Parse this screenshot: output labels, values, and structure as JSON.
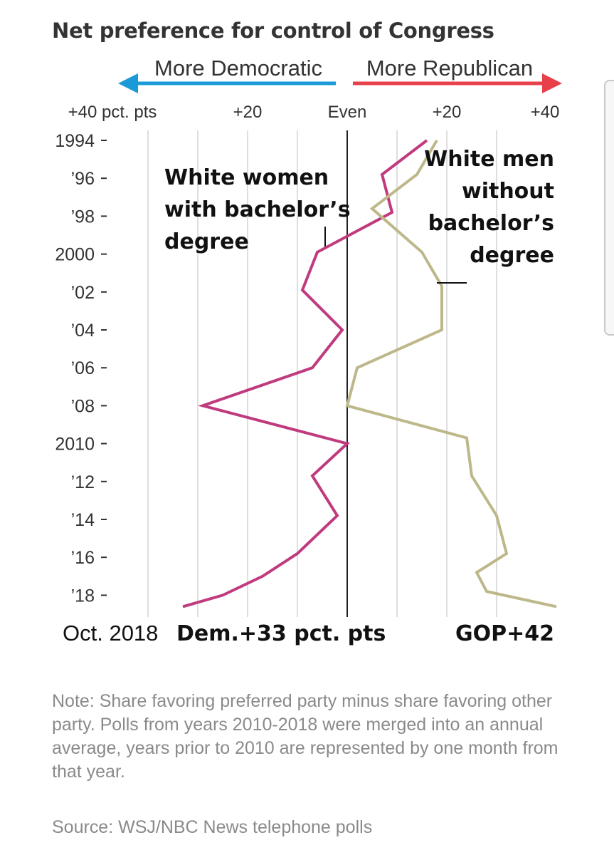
{
  "title": "Net preference for control of Congress",
  "direction": {
    "left": "More Democratic",
    "right": "More Republican",
    "left_color": "#1a9ad6",
    "right_color": "#e8404a"
  },
  "chart_data": {
    "type": "line",
    "xlim": [
      -40,
      42
    ],
    "x_ticks": [
      {
        "value": -40,
        "label": "+40 pct. pts"
      },
      {
        "value": -20,
        "label": "+20"
      },
      {
        "value": 0,
        "label": "Even"
      },
      {
        "value": 20,
        "label": "+20"
      },
      {
        "value": 40,
        "label": "+40"
      }
    ],
    "gridlines": [
      -40,
      -30,
      -20,
      -10,
      10,
      20,
      30
    ],
    "zero_line": 0,
    "y_ticks": [
      {
        "value": 1994,
        "label": "1994"
      },
      {
        "value": 1996,
        "label": "’96"
      },
      {
        "value": 1998,
        "label": "’98"
      },
      {
        "value": 2000,
        "label": "2000"
      },
      {
        "value": 2002,
        "label": "’02"
      },
      {
        "value": 2004,
        "label": "’04"
      },
      {
        "value": 2006,
        "label": "’06"
      },
      {
        "value": 2008,
        "label": "’08"
      },
      {
        "value": 2010,
        "label": "2010"
      },
      {
        "value": 2012,
        "label": "’12"
      },
      {
        "value": 2014,
        "label": "’14"
      },
      {
        "value": 2016,
        "label": "’16"
      },
      {
        "value": 2018,
        "label": "’18"
      }
    ],
    "ylim": [
      1994,
      2018.6
    ],
    "series": [
      {
        "name": "White women with bachelor’s degree",
        "label_lines": [
          "White women",
          "with bachelor’s",
          "degree"
        ],
        "color": "#c03a7e",
        "points": [
          [
            16,
            1994
          ],
          [
            7,
            1995.8
          ],
          [
            9,
            1997.8
          ],
          [
            -6,
            1999.9
          ],
          [
            -9,
            2001.9
          ],
          [
            -1,
            2004
          ],
          [
            -7,
            2006
          ],
          [
            -29,
            2008
          ],
          [
            0,
            2010
          ],
          [
            -7,
            2011.7
          ],
          [
            -2,
            2013.8
          ],
          [
            -10,
            2015.8
          ],
          [
            -17,
            2017
          ],
          [
            -25,
            2018
          ],
          [
            -33,
            2018.6
          ]
        ]
      },
      {
        "name": "White men without bachelor’s degree",
        "label_lines": [
          "White men",
          "without",
          "bachelor’s",
          "degree"
        ],
        "color": "#bdb88a",
        "points": [
          [
            18,
            1994
          ],
          [
            14,
            1995.8
          ],
          [
            5,
            1997.6
          ],
          [
            15,
            1999.9
          ],
          [
            19,
            2001.7
          ],
          [
            19,
            2004
          ],
          [
            2,
            2006
          ],
          [
            0,
            2008
          ],
          [
            24,
            2009.7
          ],
          [
            25,
            2011.7
          ],
          [
            30,
            2013.8
          ],
          [
            32,
            2015.8
          ],
          [
            26,
            2016.8
          ],
          [
            28,
            2017.8
          ],
          [
            42,
            2018.6
          ]
        ]
      }
    ],
    "endpoint_labels": {
      "date": "Oct. 2018",
      "dem": "Dem.+33 pct. pts",
      "gop": "GOP+42"
    }
  },
  "note": "Note: Share favoring preferred party minus share favoring other party. Polls from years 2010-2018 were merged into an annual average, years prior to 2010 are represented by one month from that year.",
  "source": "Source: WSJ/NBC News telephone polls"
}
